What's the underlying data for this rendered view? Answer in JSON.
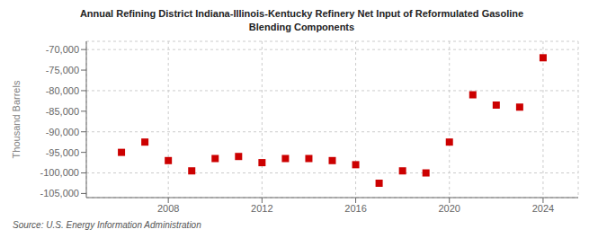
{
  "chart_data": {
    "type": "scatter",
    "title": "Annual Refining District Indiana-Illinois-Kentucky Refinery Net Input of Reformulated Gasoline\nBlending Components",
    "ylabel": "Thousand Barrels",
    "annotation": "Source: U.S. Energy Information Administration",
    "x": [
      2006,
      2007,
      2008,
      2009,
      2010,
      2011,
      2012,
      2013,
      2014,
      2015,
      2016,
      2017,
      2018,
      2019,
      2020,
      2021,
      2022,
      2023,
      2024
    ],
    "values": [
      -95000,
      -92500,
      -97000,
      -99500,
      -96500,
      -96000,
      -97500,
      -96500,
      -96500,
      -97000,
      -98000,
      -102500,
      -99500,
      -100000,
      -92500,
      -81000,
      -83500,
      -84000,
      -72000
    ],
    "color": "#cc0000",
    "marker": "square",
    "xlim": [
      2004.5,
      2025.5
    ],
    "xticks": [
      2008,
      2012,
      2016,
      2020,
      2024
    ],
    "ylim": [
      -106000,
      -68000
    ],
    "yticks": [
      {
        "value": -105000,
        "label": "-105,000"
      },
      {
        "value": -100000,
        "label": "-100,000"
      },
      {
        "value": -95000,
        "label": "-95,000"
      },
      {
        "value": -90000,
        "label": "-90,000"
      },
      {
        "value": -85000,
        "label": "-85,000"
      },
      {
        "value": -80000,
        "label": "-80,000"
      },
      {
        "value": -75000,
        "label": "-75,000"
      },
      {
        "value": -70000,
        "label": "-70,000"
      }
    ],
    "grid": true
  }
}
